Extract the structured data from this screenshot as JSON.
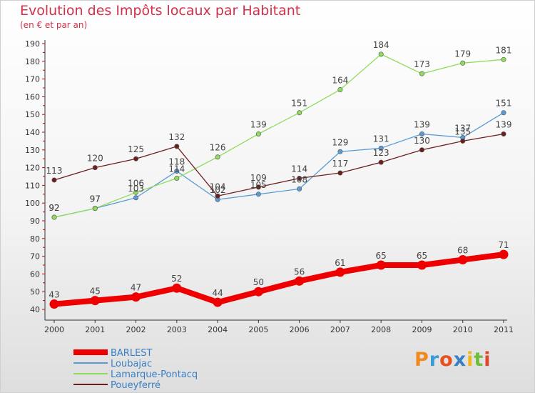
{
  "title": "Evolution des Impôts locaux par Habitant",
  "subtitle": "(en € et par an)",
  "logo": {
    "text": "Proxiti",
    "colors": [
      "#f08a1e",
      "#3b9ad8",
      "#e94e1b",
      "#3a7fc4",
      "#f2b51a",
      "#6dbf3b",
      "#e0452b"
    ]
  },
  "chart_data": {
    "type": "line",
    "title": "Evolution des Impôts locaux par Habitant",
    "subtitle": "(en € et par an)",
    "x": [
      "2000",
      "2001",
      "2002",
      "2003",
      "2004",
      "2005",
      "2006",
      "2007",
      "2008",
      "2009",
      "2010",
      "2011"
    ],
    "ylim": [
      40,
      190
    ],
    "yticks": [
      40,
      50,
      60,
      70,
      80,
      90,
      100,
      110,
      120,
      130,
      140,
      150,
      160,
      170,
      180,
      190
    ],
    "grid": false,
    "legend_position": "bottom-left",
    "series": [
      {
        "name": "BARLEST",
        "color": "#ee0000",
        "values": [
          43,
          45,
          47,
          52,
          44,
          50,
          56,
          61,
          65,
          65,
          68,
          71
        ]
      },
      {
        "name": "Loubajac",
        "color": "#5b9bd5",
        "values": [
          92,
          97,
          103,
          118,
          102,
          105,
          108,
          129,
          131,
          139,
          137,
          151
        ]
      },
      {
        "name": "Lamarque-Pontacq",
        "color": "#8fdc5c",
        "values": [
          92,
          97,
          106,
          114,
          126,
          139,
          151,
          164,
          184,
          173,
          179,
          181
        ]
      },
      {
        "name": "Poueyferré",
        "color": "#6b1f1f",
        "values": [
          113,
          120,
          125,
          132,
          104,
          109,
          114,
          117,
          123,
          130,
          135,
          139
        ]
      }
    ]
  }
}
